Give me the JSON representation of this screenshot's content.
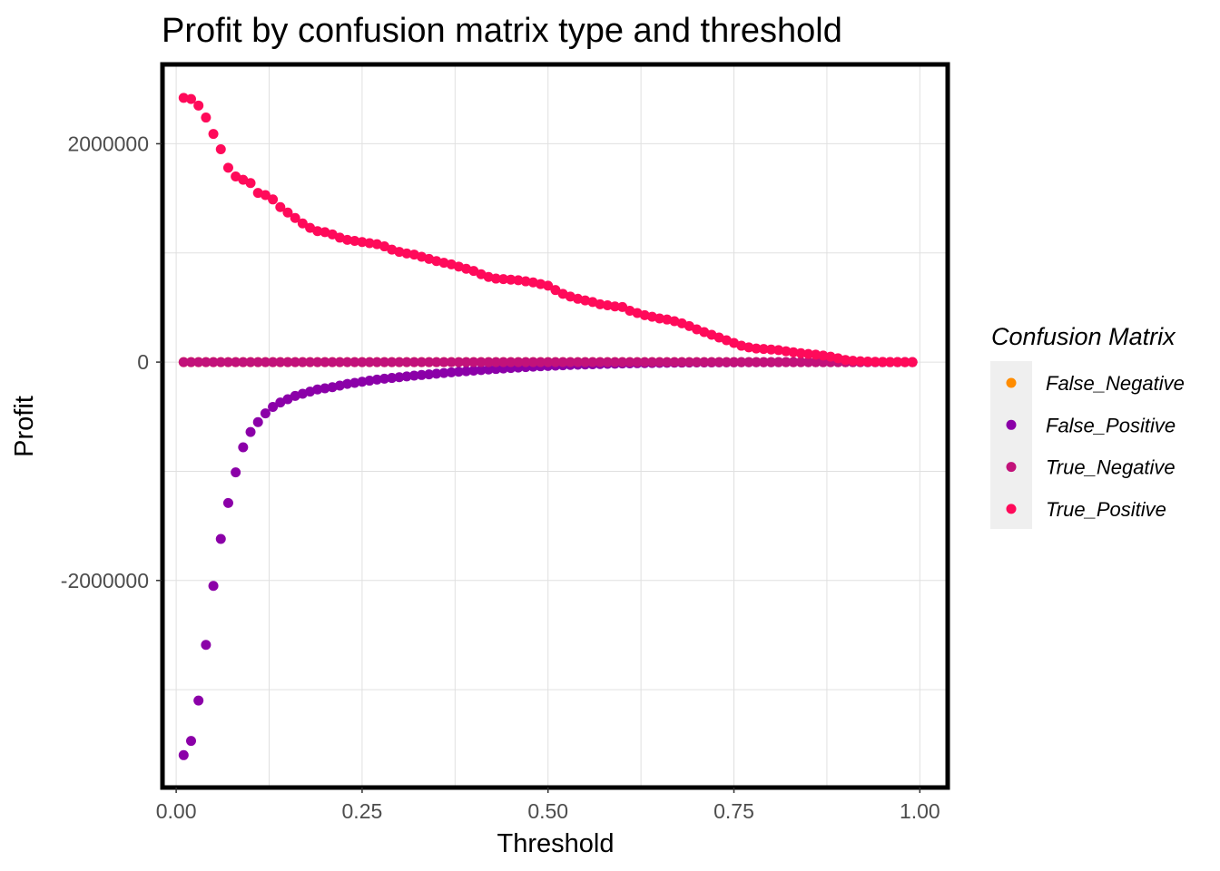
{
  "chart_data": {
    "type": "scatter",
    "title": "Profit by confusion matrix type and threshold",
    "xlabel": "Threshold",
    "ylabel": "Profit",
    "xlim": [
      -0.016,
      1.035
    ],
    "ylim": [
      -3880000,
      2710000
    ],
    "x_ticks": [
      0,
      0.25,
      0.5,
      0.75,
      1.0
    ],
    "x_tick_labels": [
      "0.00",
      "0.25",
      "0.50",
      "0.75",
      "1.00"
    ],
    "y_ticks": [
      2000000,
      0,
      -2000000
    ],
    "y_tick_labels": [
      "2000000",
      "0",
      "-2000000"
    ],
    "grid": true,
    "legend": {
      "title": "Confusion Matrix",
      "position": "right"
    },
    "series": [
      {
        "name": "False_Negative",
        "color": "#ff8c00",
        "x": [
          0.01,
          0.02,
          0.03,
          0.04,
          0.05,
          0.06,
          0.07,
          0.08,
          0.09,
          0.1,
          0.11,
          0.12,
          0.13,
          0.14,
          0.15,
          0.16,
          0.17,
          0.18,
          0.19,
          0.2,
          0.21,
          0.22,
          0.23,
          0.24,
          0.25,
          0.26,
          0.27,
          0.28,
          0.29,
          0.3,
          0.31,
          0.32,
          0.33,
          0.34,
          0.35,
          0.36,
          0.37,
          0.38,
          0.39,
          0.4,
          0.41,
          0.42,
          0.43,
          0.44,
          0.45,
          0.46,
          0.47,
          0.48,
          0.49,
          0.5,
          0.51,
          0.52,
          0.53,
          0.54,
          0.55,
          0.56,
          0.57,
          0.58,
          0.59,
          0.6,
          0.61,
          0.62,
          0.63,
          0.64,
          0.65,
          0.66,
          0.67,
          0.68,
          0.69,
          0.7,
          0.71,
          0.72,
          0.73,
          0.74,
          0.75,
          0.76,
          0.77,
          0.78,
          0.79,
          0.8,
          0.81,
          0.82,
          0.83,
          0.84,
          0.85,
          0.86,
          0.87,
          0.88,
          0.89,
          0.9,
          0.91,
          0.92,
          0.93,
          0.94,
          0.95,
          0.96,
          0.97,
          0.98,
          0.99
        ],
        "y": [
          0,
          0,
          0,
          0,
          0,
          0,
          0,
          0,
          0,
          0,
          0,
          0,
          0,
          0,
          0,
          0,
          0,
          0,
          0,
          0,
          0,
          0,
          0,
          0,
          0,
          0,
          0,
          0,
          0,
          0,
          0,
          0,
          0,
          0,
          0,
          0,
          0,
          0,
          0,
          0,
          0,
          0,
          0,
          0,
          0,
          0,
          0,
          0,
          0,
          0,
          0,
          0,
          0,
          0,
          0,
          0,
          0,
          0,
          0,
          0,
          0,
          0,
          0,
          0,
          0,
          0,
          0,
          0,
          0,
          0,
          0,
          0,
          0,
          0,
          0,
          0,
          0,
          0,
          0,
          0,
          0,
          0,
          0,
          0,
          0,
          0,
          0,
          0,
          0,
          0,
          0,
          0,
          0,
          0,
          0,
          0,
          0,
          0,
          0
        ]
      },
      {
        "name": "False_Positive",
        "color": "#8b00a8",
        "x": [
          0.01,
          0.02,
          0.03,
          0.04,
          0.05,
          0.06,
          0.07,
          0.08,
          0.09,
          0.1,
          0.11,
          0.12,
          0.13,
          0.14,
          0.15,
          0.16,
          0.17,
          0.18,
          0.19,
          0.2,
          0.21,
          0.22,
          0.23,
          0.24,
          0.25,
          0.26,
          0.27,
          0.28,
          0.29,
          0.3,
          0.31,
          0.32,
          0.33,
          0.34,
          0.35,
          0.36,
          0.37,
          0.38,
          0.39,
          0.4,
          0.41,
          0.42,
          0.43,
          0.44,
          0.45,
          0.46,
          0.47,
          0.48,
          0.49,
          0.5,
          0.51,
          0.52,
          0.53,
          0.54,
          0.55,
          0.56,
          0.57,
          0.58,
          0.59,
          0.6,
          0.61,
          0.62,
          0.63,
          0.64,
          0.65,
          0.66,
          0.67,
          0.68,
          0.69,
          0.7,
          0.71,
          0.72,
          0.73,
          0.74,
          0.75,
          0.76,
          0.77,
          0.78,
          0.79,
          0.8,
          0.81,
          0.82,
          0.83,
          0.84,
          0.85,
          0.86,
          0.87,
          0.88,
          0.89,
          0.9,
          0.91,
          0.92,
          0.93,
          0.94,
          0.95,
          0.96,
          0.97,
          0.98,
          0.99
        ],
        "y": [
          -3600000,
          -3470000,
          -3100000,
          -2590000,
          -2050000,
          -1620000,
          -1290000,
          -1010000,
          -780000,
          -640000,
          -550000,
          -470000,
          -410000,
          -370000,
          -340000,
          -310000,
          -290000,
          -270000,
          -250000,
          -240000,
          -230000,
          -215000,
          -200000,
          -190000,
          -180000,
          -170000,
          -160000,
          -152000,
          -145000,
          -138000,
          -131000,
          -124000,
          -118000,
          -112000,
          -106000,
          -100000,
          -94000,
          -88000,
          -83000,
          -78000,
          -73000,
          -68000,
          -63000,
          -58000,
          -54000,
          -50000,
          -46000,
          -42000,
          -38000,
          -35000,
          -32000,
          -29000,
          -26000,
          -24000,
          -22000,
          -20000,
          -18000,
          -16000,
          -14500,
          -13000,
          -11500,
          -10000,
          -9000,
          -8000,
          -7000,
          -6200,
          -5500,
          -4800,
          -4200,
          -3600,
          -3100,
          -2700,
          -2300,
          -2000,
          -1700,
          -1400,
          -1200,
          -1000,
          -850,
          -700,
          -580,
          -480,
          -400,
          -330,
          -270,
          -220,
          -180,
          -140,
          -110,
          -85,
          -65,
          -50,
          -38,
          -28,
          -20,
          -14,
          -9,
          -5,
          -2
        ]
      },
      {
        "name": "True_Negative",
        "color": "#c2127a",
        "x": [
          0.01,
          0.02,
          0.03,
          0.04,
          0.05,
          0.06,
          0.07,
          0.08,
          0.09,
          0.1,
          0.11,
          0.12,
          0.13,
          0.14,
          0.15,
          0.16,
          0.17,
          0.18,
          0.19,
          0.2,
          0.21,
          0.22,
          0.23,
          0.24,
          0.25,
          0.26,
          0.27,
          0.28,
          0.29,
          0.3,
          0.31,
          0.32,
          0.33,
          0.34,
          0.35,
          0.36,
          0.37,
          0.38,
          0.39,
          0.4,
          0.41,
          0.42,
          0.43,
          0.44,
          0.45,
          0.46,
          0.47,
          0.48,
          0.49,
          0.5,
          0.51,
          0.52,
          0.53,
          0.54,
          0.55,
          0.56,
          0.57,
          0.58,
          0.59,
          0.6,
          0.61,
          0.62,
          0.63,
          0.64,
          0.65,
          0.66,
          0.67,
          0.68,
          0.69,
          0.7,
          0.71,
          0.72,
          0.73,
          0.74,
          0.75,
          0.76,
          0.77,
          0.78,
          0.79,
          0.8,
          0.81,
          0.82,
          0.83,
          0.84,
          0.85,
          0.86,
          0.87,
          0.88,
          0.89,
          0.9,
          0.91,
          0.92,
          0.93,
          0.94,
          0.95,
          0.96,
          0.97,
          0.98,
          0.99
        ],
        "y": [
          0,
          0,
          0,
          0,
          0,
          0,
          0,
          0,
          0,
          0,
          0,
          0,
          0,
          0,
          0,
          0,
          0,
          0,
          0,
          0,
          0,
          0,
          0,
          0,
          0,
          0,
          0,
          0,
          0,
          0,
          0,
          0,
          0,
          0,
          0,
          0,
          0,
          0,
          0,
          0,
          0,
          0,
          0,
          0,
          0,
          0,
          0,
          0,
          0,
          0,
          0,
          0,
          0,
          0,
          0,
          0,
          0,
          0,
          0,
          0,
          0,
          0,
          0,
          0,
          0,
          0,
          0,
          0,
          0,
          0,
          0,
          0,
          0,
          0,
          0,
          0,
          0,
          0,
          0,
          0,
          0,
          0,
          0,
          0,
          0,
          0,
          0,
          0,
          0,
          0,
          0,
          0,
          0,
          0,
          0,
          0,
          0,
          0,
          0
        ]
      },
      {
        "name": "True_Positive",
        "color": "#ff0a5a",
        "x": [
          0.01,
          0.02,
          0.03,
          0.04,
          0.05,
          0.06,
          0.07,
          0.08,
          0.09,
          0.1,
          0.11,
          0.12,
          0.13,
          0.14,
          0.15,
          0.16,
          0.17,
          0.18,
          0.19,
          0.2,
          0.21,
          0.22,
          0.23,
          0.24,
          0.25,
          0.26,
          0.27,
          0.28,
          0.29,
          0.3,
          0.31,
          0.32,
          0.33,
          0.34,
          0.35,
          0.36,
          0.37,
          0.38,
          0.39,
          0.4,
          0.41,
          0.42,
          0.43,
          0.44,
          0.45,
          0.46,
          0.47,
          0.48,
          0.49,
          0.5,
          0.51,
          0.52,
          0.53,
          0.54,
          0.55,
          0.56,
          0.57,
          0.58,
          0.59,
          0.6,
          0.61,
          0.62,
          0.63,
          0.64,
          0.65,
          0.66,
          0.67,
          0.68,
          0.69,
          0.7,
          0.71,
          0.72,
          0.73,
          0.74,
          0.75,
          0.76,
          0.77,
          0.78,
          0.79,
          0.8,
          0.81,
          0.82,
          0.83,
          0.84,
          0.85,
          0.86,
          0.87,
          0.88,
          0.89,
          0.9,
          0.91,
          0.92,
          0.93,
          0.94,
          0.95,
          0.96,
          0.97,
          0.98,
          0.99
        ],
        "y": [
          2420000,
          2410000,
          2350000,
          2240000,
          2090000,
          1950000,
          1780000,
          1700000,
          1670000,
          1640000,
          1550000,
          1530000,
          1490000,
          1420000,
          1370000,
          1320000,
          1270000,
          1230000,
          1200000,
          1190000,
          1170000,
          1140000,
          1120000,
          1110000,
          1100000,
          1090000,
          1080000,
          1060000,
          1030000,
          1010000,
          995000,
          985000,
          965000,
          945000,
          925000,
          910000,
          895000,
          875000,
          855000,
          835000,
          805000,
          780000,
          765000,
          760000,
          755000,
          750000,
          740000,
          730000,
          715000,
          700000,
          660000,
          625000,
          600000,
          580000,
          565000,
          550000,
          530000,
          520000,
          510000,
          505000,
          470000,
          450000,
          430000,
          415000,
          400000,
          390000,
          375000,
          355000,
          330000,
          300000,
          275000,
          250000,
          225000,
          200000,
          175000,
          150000,
          135000,
          125000,
          120000,
          115000,
          110000,
          100000,
          90000,
          82000,
          75000,
          68000,
          60000,
          50000,
          35000,
          20000,
          12000,
          8000,
          5000,
          3000,
          2000,
          1000,
          500,
          200,
          100
        ]
      }
    ]
  }
}
